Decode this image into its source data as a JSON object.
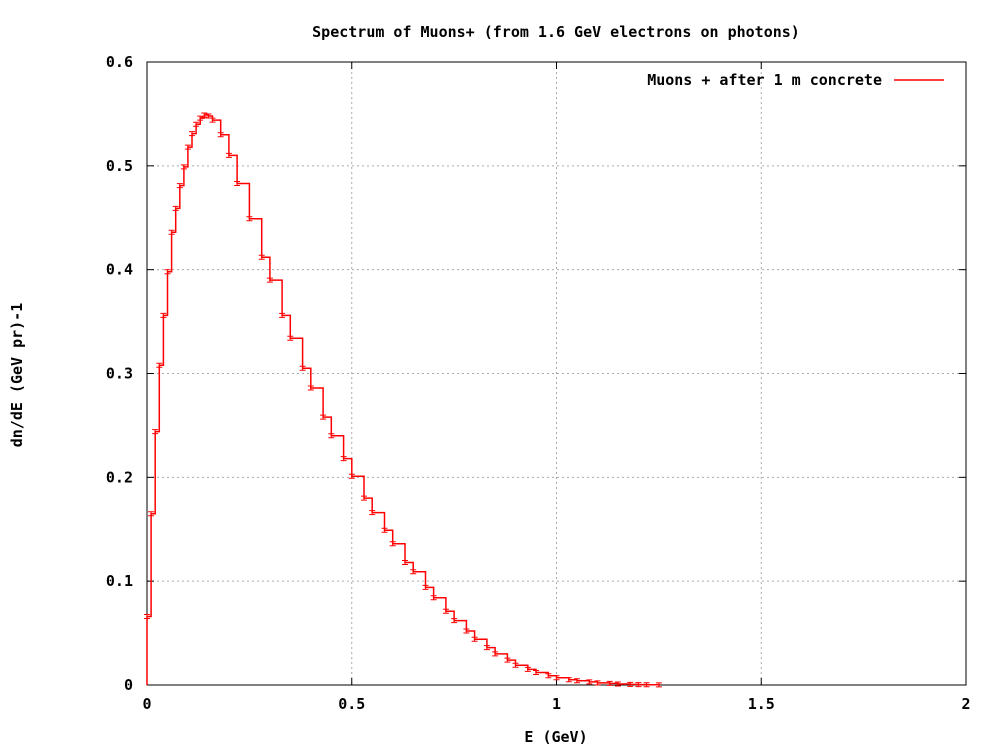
{
  "chart_data": {
    "type": "line",
    "title": "Spectrum of Muons+ (from 1.6 GeV electrons on photons)",
    "xlabel": "E (GeV)",
    "ylabel": "dn/dE (GeV pr)-1",
    "xlim": [
      0,
      2
    ],
    "ylim": [
      0,
      0.6
    ],
    "x_ticks": [
      "0",
      "0.5",
      "1",
      "1.5",
      "2"
    ],
    "x_tick_values": [
      0,
      0.5,
      1,
      1.5,
      2
    ],
    "y_ticks": [
      "0",
      "0.1",
      "0.2",
      "0.3",
      "0.4",
      "0.5",
      "0.6"
    ],
    "y_tick_values": [
      0,
      0.1,
      0.2,
      0.3,
      0.4,
      0.5,
      0.6
    ],
    "grid": true,
    "legend_position": "top-right",
    "step": true,
    "error_bars": true,
    "series": [
      {
        "name": "Muons + after 1 m concrete",
        "color": "#ff0000",
        "x": [
          0,
          0.01,
          0.02,
          0.03,
          0.04,
          0.05,
          0.06,
          0.07,
          0.08,
          0.09,
          0.1,
          0.11,
          0.12,
          0.13,
          0.14,
          0.15,
          0.16,
          0.18,
          0.2,
          0.22,
          0.25,
          0.28,
          0.3,
          0.33,
          0.35,
          0.38,
          0.4,
          0.43,
          0.45,
          0.48,
          0.5,
          0.53,
          0.55,
          0.58,
          0.6,
          0.63,
          0.65,
          0.68,
          0.7,
          0.73,
          0.75,
          0.78,
          0.8,
          0.83,
          0.85,
          0.88,
          0.9,
          0.93,
          0.95,
          0.98,
          1.0,
          1.03,
          1.05,
          1.08,
          1.1,
          1.13,
          1.15,
          1.18,
          1.2,
          1.22,
          1.25
        ],
        "values": [
          0.066,
          0.165,
          0.244,
          0.308,
          0.356,
          0.398,
          0.436,
          0.459,
          0.481,
          0.499,
          0.518,
          0.531,
          0.54,
          0.546,
          0.549,
          0.548,
          0.544,
          0.53,
          0.51,
          0.483,
          0.449,
          0.412,
          0.39,
          0.356,
          0.334,
          0.305,
          0.286,
          0.258,
          0.24,
          0.218,
          0.201,
          0.18,
          0.166,
          0.149,
          0.136,
          0.118,
          0.109,
          0.094,
          0.084,
          0.071,
          0.062,
          0.052,
          0.044,
          0.036,
          0.03,
          0.024,
          0.019,
          0.015,
          0.012,
          0.009,
          0.007,
          0.005,
          0.004,
          0.003,
          0.002,
          0.0015,
          0.001,
          0.0006,
          0.0004,
          0.0002,
          0.0001
        ]
      }
    ]
  }
}
